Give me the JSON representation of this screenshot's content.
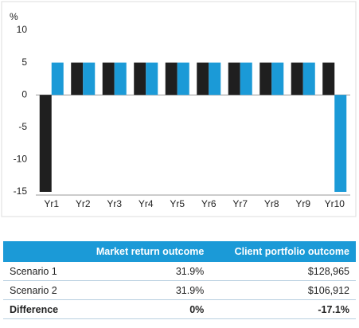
{
  "chart_data": {
    "type": "bar",
    "y_label": "%",
    "categories": [
      "Yr1",
      "Yr2",
      "Yr3",
      "Yr4",
      "Yr5",
      "Yr6",
      "Yr7",
      "Yr8",
      "Yr9",
      "Yr10"
    ],
    "series": [
      {
        "color": "#1f1f1f",
        "values": [
          -15,
          5,
          5,
          5,
          5,
          5,
          5,
          5,
          5,
          5
        ]
      },
      {
        "color": "#1b9ad7",
        "values": [
          5,
          5,
          5,
          5,
          5,
          5,
          5,
          5,
          5,
          -15
        ]
      }
    ],
    "ylim": [
      -15,
      10
    ],
    "yticks": [
      -15,
      -10,
      -5,
      0,
      5,
      10
    ]
  },
  "table": {
    "header": [
      "",
      "Market return outcome",
      "Client portfolio outcome"
    ],
    "rows": [
      [
        "Scenario 1",
        "31.9%",
        "$128,965"
      ],
      [
        "Scenario 2",
        "31.9%",
        "$106,912"
      ],
      [
        "Difference",
        "0%",
        "-17.1%"
      ]
    ]
  }
}
